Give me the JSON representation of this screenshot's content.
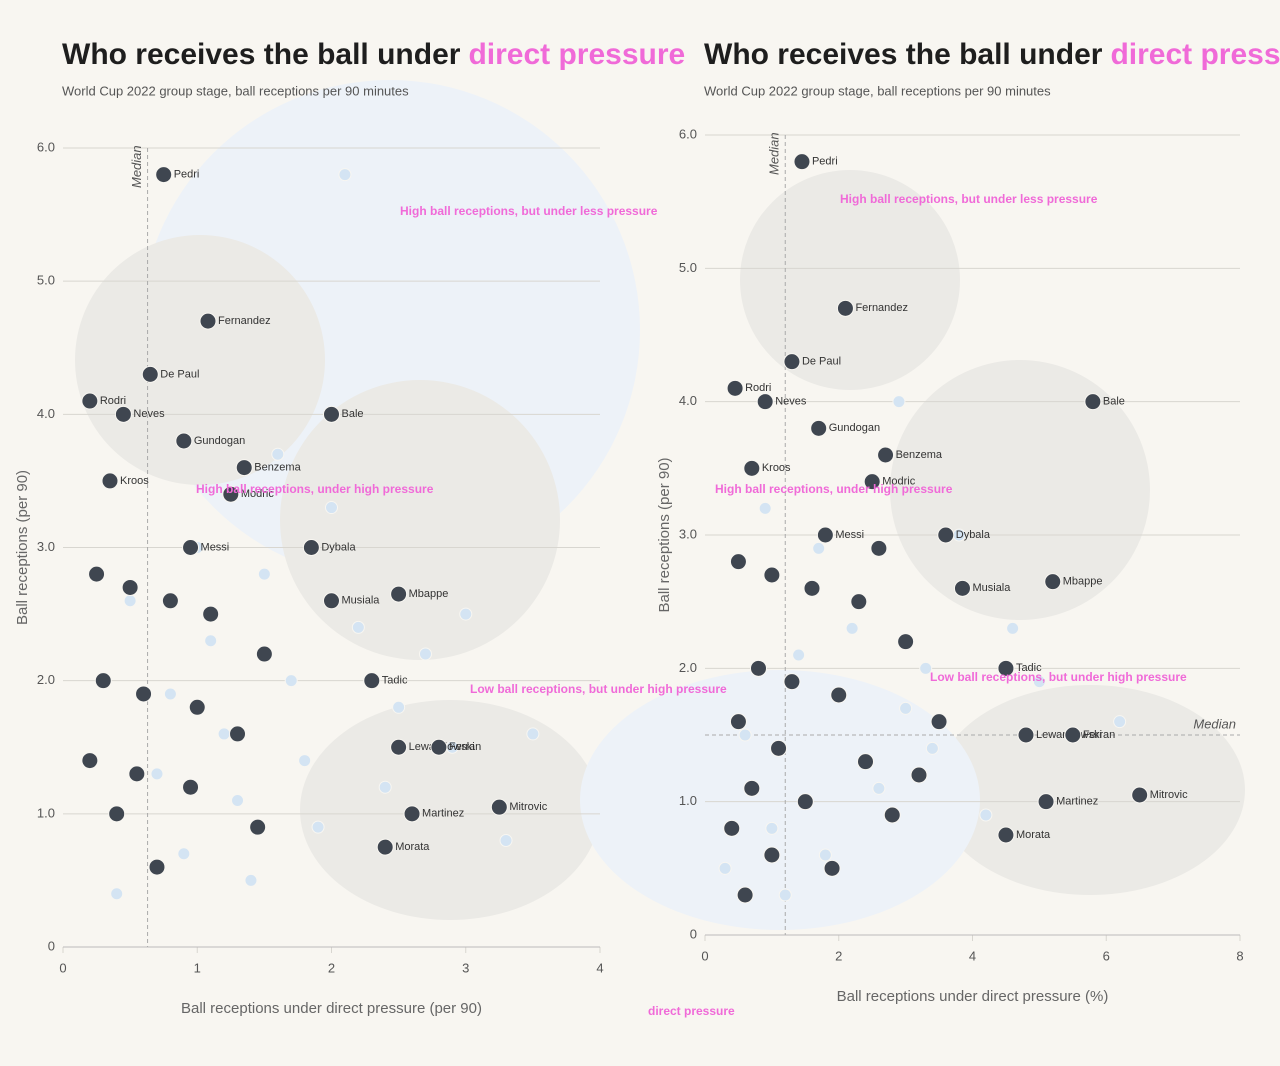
{
  "chart_data": [
    {
      "type": "scatter",
      "title": "Who receives the ball under",
      "title_highlight": "direct pressure",
      "subtitle": "World Cup 2022 group stage, ball receptions per 90 minutes",
      "x_label": "Ball receptions under direct pressure (per 90)",
      "y_label": "Ball receptions (per 90)",
      "xlim": [
        0,
        4
      ],
      "ylim": [
        0,
        6
      ],
      "xticks": [
        0,
        1,
        2,
        3,
        4
      ],
      "yticks": [
        0,
        {
          "value": 1,
          "label": "1.0"
        },
        {
          "value": 2,
          "label": "2.0"
        },
        {
          "value": 3,
          "label": "3.0"
        },
        {
          "value": 4,
          "label": "4.0"
        },
        {
          "value": 5,
          "label": "5.0"
        },
        {
          "value": 6,
          "label": "6.0"
        }
      ],
      "median_x": 0.63,
      "median_label": "Median",
      "annotations": [
        "High ball receptions, but under less pressure",
        "High ball receptions, under high pressure",
        "Low ball receptions, but under high pressure"
      ],
      "series": [
        {
          "color": "#d4e4f3",
          "x": [
            0.4,
            0.9,
            1.4,
            1.9,
            2.4,
            2.9,
            3.3,
            0.7,
            1.2,
            1.7,
            2.2,
            2.7,
            0.5,
            1.0,
            1.5,
            2.0,
            3.0,
            0.8,
            1.3,
            1.8,
            2.5,
            1.1,
            1.6,
            3.5,
            2.1
          ],
          "y": [
            0.4,
            0.7,
            0.5,
            0.9,
            1.2,
            1.5,
            0.8,
            1.3,
            1.6,
            2.0,
            2.4,
            2.2,
            2.6,
            3.0,
            2.8,
            3.3,
            2.5,
            1.9,
            1.1,
            1.4,
            1.8,
            2.3,
            3.7,
            1.6,
            5.8
          ]
        },
        {
          "color": "#3f4650",
          "x": [
            0.75,
            1.08,
            0.65,
            0.2,
            0.45,
            0.9,
            1.35,
            1.25,
            0.35,
            0.95,
            1.85,
            2.0,
            2.5,
            2.0,
            2.3,
            2.5,
            2.8,
            2.6,
            3.25,
            2.4,
            0.25,
            0.5,
            0.8,
            1.1,
            1.5,
            0.3,
            0.6,
            1.0,
            1.3,
            0.2,
            0.55,
            0.95,
            0.4,
            1.45,
            0.7
          ],
          "y": [
            5.8,
            4.7,
            4.3,
            4.1,
            4.0,
            3.8,
            3.6,
            3.4,
            3.5,
            3.0,
            3.0,
            2.6,
            2.65,
            4.0,
            2.0,
            1.5,
            1.5,
            1.0,
            1.05,
            0.75,
            2.8,
            2.7,
            2.6,
            2.5,
            2.2,
            2.0,
            1.9,
            1.8,
            1.6,
            1.4,
            1.3,
            1.2,
            1.0,
            0.9,
            0.6
          ],
          "labels": [
            "Pedri",
            "Fernandez",
            "De Paul",
            "Rodri",
            "Neves",
            "Gundogan",
            "Benzema",
            "Modric",
            "Kroos",
            "Messi",
            "Dybala",
            "Musiala",
            "Mbappe",
            "Bale",
            "Tadic",
            "Lewandowski",
            "Ferran",
            "Martinez",
            "Mitrovic",
            "Morata",
            null,
            null,
            null,
            null,
            null,
            null,
            null,
            null,
            null,
            null,
            null,
            null,
            null,
            null,
            null
          ]
        }
      ]
    },
    {
      "type": "scatter",
      "title": "Who receives the ball under",
      "title_highlight": "direct pressure",
      "subtitle": "World Cup 2022 group stage, ball receptions per 90 minutes",
      "x_label": "Ball receptions under direct pressure (%)",
      "y_label": "Ball receptions (per 90)",
      "footer": "direct pressure",
      "xlim": [
        0,
        8
      ],
      "ylim": [
        0,
        6
      ],
      "xticks": [
        0,
        2,
        4,
        6,
        8
      ],
      "yticks": [
        0,
        {
          "value": 1,
          "label": "1.0"
        },
        {
          "value": 2,
          "label": "2.0"
        },
        {
          "value": 3,
          "label": "3.0"
        },
        {
          "value": 4,
          "label": "4.0"
        },
        {
          "value": 5,
          "label": "5.0"
        },
        {
          "value": 6,
          "label": "6.0"
        }
      ],
      "median_x": 1.2,
      "median_y": 1.5,
      "median_label": "Median",
      "annotations": [
        "High ball receptions, but under less pressure",
        "High ball receptions, under high pressure",
        "Low ball receptions, but under high pressure"
      ],
      "series": [
        {
          "color": "#d4e4f3",
          "x": [
            0.3,
            1.0,
            1.8,
            2.6,
            3.4,
            4.2,
            5.0,
            0.6,
            1.4,
            2.2,
            3.0,
            3.8,
            0.9,
            1.7,
            2.5,
            3.3,
            4.6,
            6.2,
            2.9,
            1.2
          ],
          "y": [
            0.5,
            0.8,
            0.6,
            1.1,
            1.4,
            0.9,
            1.9,
            1.5,
            2.1,
            2.3,
            1.7,
            3.0,
            3.2,
            2.9,
            3.4,
            2.0,
            2.3,
            1.6,
            4.0,
            0.3
          ]
        },
        {
          "color": "#3f4650",
          "x": [
            1.45,
            2.1,
            1.3,
            0.45,
            0.9,
            1.7,
            2.7,
            2.5,
            0.7,
            1.8,
            3.6,
            3.85,
            5.2,
            5.8,
            4.5,
            4.8,
            5.5,
            5.1,
            6.5,
            4.5,
            0.5,
            1.0,
            1.6,
            2.3,
            3.0,
            0.8,
            1.3,
            2.0,
            0.5,
            1.1,
            2.4,
            3.2,
            0.7,
            1.5,
            2.8,
            0.4,
            1.0,
            1.9,
            0.6,
            3.5,
            2.6
          ],
          "y": [
            5.8,
            4.7,
            4.3,
            4.1,
            4.0,
            3.8,
            3.6,
            3.4,
            3.5,
            3.0,
            3.0,
            2.6,
            2.65,
            4.0,
            2.0,
            1.5,
            1.5,
            1.0,
            1.05,
            0.75,
            2.8,
            2.7,
            2.6,
            2.5,
            2.2,
            2.0,
            1.9,
            1.8,
            1.6,
            1.4,
            1.3,
            1.2,
            1.1,
            1.0,
            0.9,
            0.8,
            0.6,
            0.5,
            0.3,
            1.6,
            2.9
          ],
          "labels": [
            "Pedri",
            "Fernandez",
            "De Paul",
            "Rodri",
            "Neves",
            "Gundogan",
            "Benzema",
            "Modric",
            "Kroos",
            "Messi",
            "Dybala",
            "Musiala",
            "Mbappe",
            "Bale",
            "Tadic",
            "Lewandowski",
            "Ferran",
            "Martinez",
            "Mitrovic",
            "Morata",
            null,
            null,
            null,
            null,
            null,
            null,
            null,
            null,
            null,
            null,
            null,
            null,
            null,
            null,
            null,
            null,
            null,
            null,
            null,
            null,
            null
          ]
        }
      ]
    }
  ]
}
